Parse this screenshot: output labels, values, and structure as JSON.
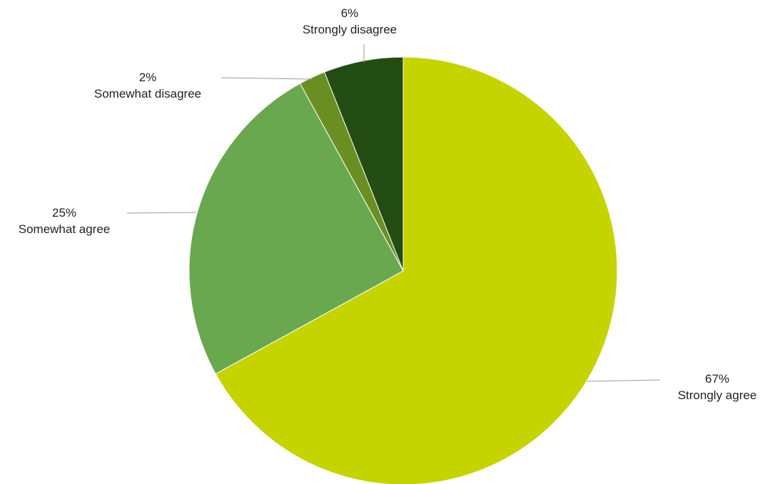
{
  "chart_data": {
    "type": "pie",
    "categories": [
      "Strongly agree",
      "Somewhat agree",
      "Somewhat disagree",
      "Strongly disagree"
    ],
    "values": [
      67,
      25,
      2,
      6
    ],
    "labels": [
      {
        "percent": "67%",
        "name": "Strongly agree"
      },
      {
        "percent": "25%",
        "name": "Somewhat agree"
      },
      {
        "percent": "2%",
        "name": "Somewhat disagree"
      },
      {
        "percent": "6%",
        "name": "Strongly disagree"
      }
    ],
    "colors": [
      "#c5d300",
      "#6aa84f",
      "#6b8e23",
      "#234d13"
    ],
    "start_angle_deg": 0,
    "direction": "clockwise",
    "legend": "none",
    "label_style": "leader-lines"
  }
}
